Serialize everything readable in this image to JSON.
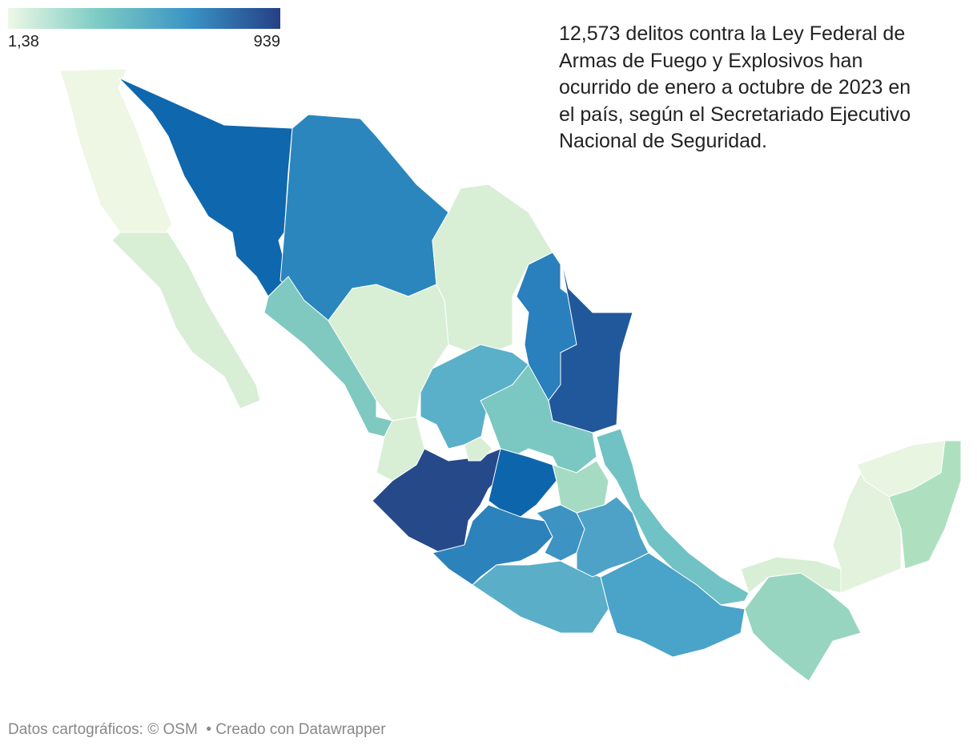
{
  "legend": {
    "min": {
      "value": 1.38,
      "label": "1,38"
    },
    "max": 939,
    "colors": [
      "#edf8e6",
      "#7ccbc4",
      "#3a94c5",
      "#253f86"
    ]
  },
  "description": "12,573 delitos contra la Ley Federal de Armas de Fuego y Explosivos han ocurrido de enero a octubre de 2023 en el país, según el Secretariado Ejecutivo Nacional de Seguridad.",
  "footer": {
    "source": "Datos cartográficos: © OSM",
    "credit": "Creado con Datawrapper"
  }
}
